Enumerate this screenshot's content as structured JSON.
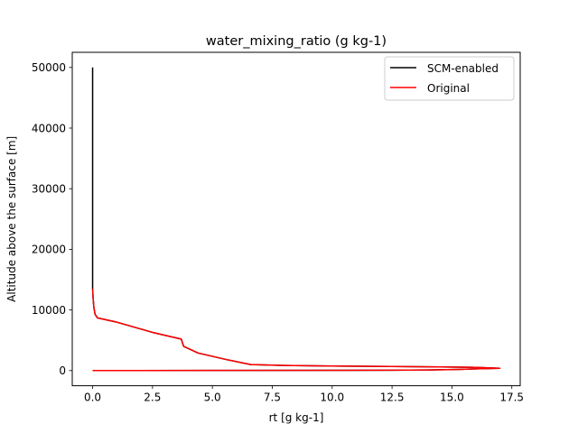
{
  "chart_data": {
    "type": "line",
    "title": "water_mixing_ratio (g kg-1)",
    "xlabel": "rt [g kg-1]",
    "ylabel": "Altitude above the surface [m]",
    "xlim": [
      -0.85,
      17.85
    ],
    "ylim": [
      -2500,
      52500
    ],
    "xticks": [
      0.0,
      2.5,
      5.0,
      7.5,
      10.0,
      12.5,
      15.0,
      17.5
    ],
    "xtick_labels": [
      "0.0",
      "2.5",
      "5.0",
      "7.5",
      "10.0",
      "12.5",
      "15.0",
      "17.5"
    ],
    "yticks": [
      0,
      10000,
      20000,
      30000,
      40000,
      50000
    ],
    "ytick_labels": [
      "0",
      "10000",
      "20000",
      "30000",
      "40000",
      "50000"
    ],
    "grid": false,
    "legend_position": "top-right",
    "series": [
      {
        "name": "SCM-enabled",
        "color": "#000000",
        "points": [
          [
            0.0,
            50000
          ],
          [
            0.0,
            40000
          ],
          [
            0.0,
            30000
          ],
          [
            0.0,
            20000
          ],
          [
            0.0,
            13500
          ],
          [
            0.02,
            12000
          ],
          [
            0.05,
            10500
          ],
          [
            0.1,
            9300
          ],
          [
            0.2,
            8700
          ],
          [
            1.0,
            8000
          ],
          [
            2.5,
            6300
          ],
          [
            3.7,
            5200
          ],
          [
            3.8,
            4000
          ],
          [
            4.4,
            2900
          ],
          [
            5.6,
            1800
          ],
          [
            6.6,
            1000
          ],
          [
            8.0,
            850
          ],
          [
            10.0,
            750
          ],
          [
            12.5,
            680
          ],
          [
            14.5,
            600
          ],
          [
            15.8,
            550
          ],
          [
            16.5,
            450
          ],
          [
            17.0,
            380
          ],
          [
            16.0,
            280
          ],
          [
            15.3,
            200
          ],
          [
            14.8,
            150
          ],
          [
            14.0,
            100
          ],
          [
            12.5,
            60
          ],
          [
            10.0,
            40
          ],
          [
            5.0,
            20
          ],
          [
            2.0,
            10
          ],
          [
            0.0,
            0
          ]
        ]
      },
      {
        "name": "Original",
        "color": "#ff0000",
        "points": [
          [
            0.0,
            13500
          ],
          [
            0.02,
            12000
          ],
          [
            0.05,
            10500
          ],
          [
            0.1,
            9300
          ],
          [
            0.2,
            8700
          ],
          [
            1.0,
            8000
          ],
          [
            2.5,
            6300
          ],
          [
            3.7,
            5200
          ],
          [
            3.8,
            4000
          ],
          [
            4.4,
            2900
          ],
          [
            5.6,
            1800
          ],
          [
            6.6,
            1000
          ],
          [
            8.0,
            850
          ],
          [
            10.0,
            750
          ],
          [
            12.5,
            680
          ],
          [
            14.5,
            600
          ],
          [
            15.8,
            550
          ],
          [
            16.5,
            450
          ],
          [
            17.0,
            380
          ],
          [
            16.0,
            280
          ],
          [
            15.3,
            200
          ],
          [
            14.8,
            150
          ],
          [
            14.0,
            100
          ],
          [
            12.5,
            60
          ],
          [
            10.0,
            40
          ],
          [
            5.0,
            20
          ],
          [
            2.0,
            10
          ],
          [
            0.0,
            0
          ]
        ]
      }
    ]
  }
}
